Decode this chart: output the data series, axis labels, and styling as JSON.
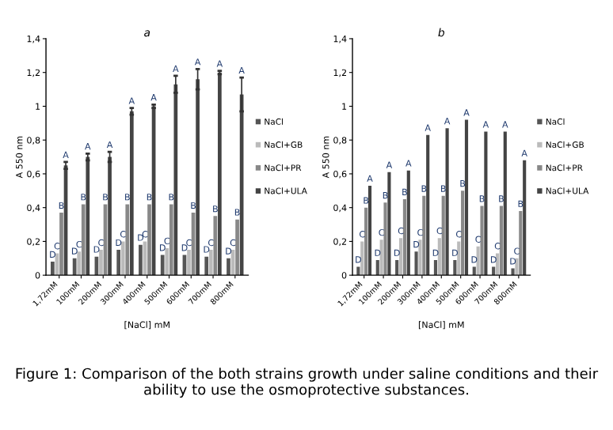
{
  "chart_data": [
    {
      "type": "bar",
      "title": "a",
      "xlabel": "[NaCl] mM",
      "ylabel": "A 550 nm",
      "categories": [
        "1,72mM",
        "100mM",
        "200mM",
        "300mM",
        "400mM",
        "500mM",
        "600mM",
        "700mM",
        "800mM"
      ],
      "ylim": [
        0,
        1.4
      ],
      "yticks": [
        0,
        {
          "value": 0.2,
          "label": "0,2"
        },
        {
          "value": 0.4,
          "label": "0,4"
        },
        {
          "value": 0.6,
          "label": "0,6"
        },
        {
          "value": 0.8,
          "label": "0,8"
        },
        1,
        {
          "value": 1.2,
          "label": "1,2"
        },
        {
          "value": 1.4,
          "label": "1,4"
        }
      ],
      "legend": "right",
      "grid": false,
      "series": [
        {
          "name": "NaCl",
          "color": "#555555",
          "values": [
            0.08,
            0.1,
            0.11,
            0.15,
            0.18,
            0.12,
            0.12,
            0.11,
            0.1
          ],
          "value_labels": [
            "D",
            "D",
            "D",
            "D",
            "D",
            "D",
            "D",
            "D",
            "D"
          ]
        },
        {
          "name": "NaCl+GB",
          "color": "#bbbbbb",
          "values": [
            0.13,
            0.14,
            0.15,
            0.2,
            0.2,
            0.16,
            0.15,
            0.15,
            0.15
          ],
          "value_labels": [
            "C",
            "C",
            "C",
            "C",
            "C",
            "C",
            "C",
            "C",
            "C"
          ]
        },
        {
          "name": "NaCl+PR",
          "color": "#888888",
          "values": [
            0.37,
            0.42,
            0.42,
            0.42,
            0.42,
            0.42,
            0.37,
            0.35,
            0.33
          ],
          "value_labels": [
            "B",
            "B",
            "B",
            "B",
            "B",
            "B",
            "B",
            "B",
            "B"
          ]
        },
        {
          "name": "NaCl+ULA",
          "color": "#444444",
          "values": [
            0.65,
            0.7,
            0.7,
            0.97,
            1.0,
            1.13,
            1.16,
            1.2,
            1.07
          ],
          "errors": [
            0.02,
            0.02,
            0.03,
            0.02,
            0.01,
            0.05,
            0.06,
            0.01,
            0.1
          ],
          "value_labels": [
            "A",
            "A",
            "A",
            "A",
            "A",
            "A",
            "A",
            "A",
            "A"
          ]
        }
      ],
      "annotations": [
        "Figure 1: Comparison of the both strains growth under saline conditions and their ability to use the osmoprotective substances."
      ]
    },
    {
      "type": "bar",
      "title": "b",
      "xlabel": "[NaCl] mM",
      "ylabel": "A 550 nm",
      "categories": [
        "1,72mM",
        "100mM",
        "200mM",
        "300mM",
        "400mM",
        "500mM",
        "600mM",
        "700mM",
        "800mM"
      ],
      "ylim": [
        0,
        1.4
      ],
      "yticks": [
        0,
        {
          "value": 0.2,
          "label": "0,2"
        },
        {
          "value": 0.4,
          "label": "0,4"
        },
        {
          "value": 0.6,
          "label": "0,6"
        },
        {
          "value": 0.8,
          "label": "0,8"
        },
        1,
        {
          "value": 1.2,
          "label": "1,2"
        },
        {
          "value": 1.4,
          "label": "1,4"
        }
      ],
      "legend": "right",
      "grid": false,
      "series": [
        {
          "name": "NaCl",
          "color": "#555555",
          "values": [
            0.05,
            0.09,
            0.09,
            0.14,
            0.09,
            0.09,
            0.05,
            0.05,
            0.04
          ],
          "value_labels": [
            "D",
            "D",
            "D",
            "D",
            "D",
            "D",
            "D",
            "D",
            "D"
          ]
        },
        {
          "name": "NaCl+GB",
          "color": "#bbbbbb",
          "values": [
            0.2,
            0.21,
            0.22,
            0.21,
            0.22,
            0.2,
            0.17,
            0.13,
            0.1
          ],
          "value_labels": [
            "C",
            "C",
            "C",
            "C",
            "C",
            "C",
            "C",
            "C",
            "C"
          ]
        },
        {
          "name": "NaCl+PR",
          "color": "#888888",
          "values": [
            0.4,
            0.43,
            0.45,
            0.47,
            0.47,
            0.5,
            0.41,
            0.41,
            0.38
          ],
          "value_labels": [
            "B",
            "B",
            "B",
            "B",
            "B",
            "B",
            "B",
            "B",
            "B"
          ]
        },
        {
          "name": "NaCl+ULA",
          "color": "#444444",
          "values": [
            0.53,
            0.61,
            0.62,
            0.83,
            0.87,
            0.92,
            0.85,
            0.85,
            0.68
          ],
          "value_labels": [
            "A",
            "A",
            "A",
            "A",
            "A",
            "A",
            "A",
            "A",
            "A"
          ]
        }
      ]
    }
  ]
}
